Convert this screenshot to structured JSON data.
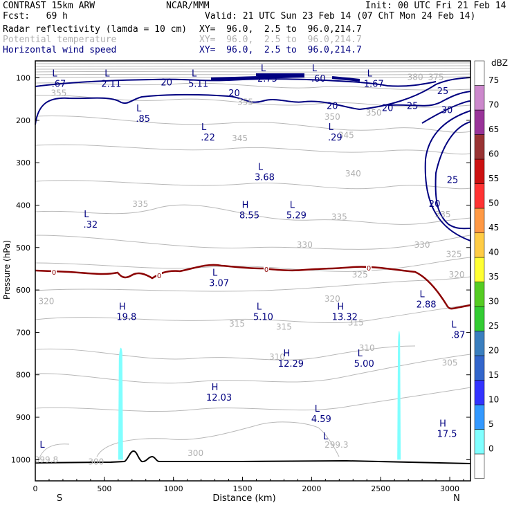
{
  "header": {
    "model": "CONTRAST 15km ARW",
    "org": "NCAR/MMM",
    "init": "Init: 00 UTC Fri 21 Feb 14",
    "fcst": "Fcst:   69 h",
    "valid": "Valid: 21 UTC Sun 23 Feb 14 (07 ChT Mon 24 Feb 14)",
    "fields": [
      {
        "name": "Radar reflectivity (lamda = 10 cm)",
        "xy": "XY=  96.0,  2.5 to  96.0,214.7",
        "color": "#000000"
      },
      {
        "name": "Potential temperature",
        "xy": "XY=  96.0,  2.5 to  96.0,214.7",
        "color": "#b0b0b0"
      },
      {
        "name": "Horizontal wind speed",
        "xy": "XY=  96.0,  2.5 to  96.0,214.7",
        "color": "#000080"
      }
    ]
  },
  "chart_data": {
    "type": "cross-section",
    "xlabel": "Distance (km)",
    "ylabel": "Pressure (hPa)",
    "xlim": [
      0,
      3150
    ],
    "ylim": [
      1050,
      60
    ],
    "x_ticks": [
      "0",
      "500",
      "1000",
      "1500",
      "2000",
      "2500",
      "3000"
    ],
    "y_ticks": [
      "100",
      "200",
      "300",
      "400",
      "500",
      "600",
      "700",
      "800",
      "900",
      "1000"
    ],
    "end_labels": {
      "left": "S",
      "right": "N"
    },
    "colorbar": {
      "unit": "dBZ",
      "levels": [
        "-",
        "0",
        "5",
        "10",
        "15",
        "20",
        "25",
        "30",
        "35",
        "40",
        "45",
        "50",
        "55",
        "60",
        "65",
        "70",
        "75"
      ],
      "colors": [
        "#ffffff",
        "#ffffff",
        "#80ffff",
        "#3399ff",
        "#3333ff",
        "#3366cc",
        "#3a7fbf",
        "#33cc33",
        "#55cc22",
        "#ffff33",
        "#ffcc44",
        "#ff9944",
        "#ff3333",
        "#cc1111",
        "#993333",
        "#993399",
        "#cc88cc",
        "#ffffff"
      ]
    },
    "theta_labels": [
      {
        "text": "380",
        "x": 2750,
        "p": 98
      },
      {
        "text": "375",
        "x": 2900,
        "p": 98
      },
      {
        "text": "355",
        "x": 170,
        "p": 136
      },
      {
        "text": "355",
        "x": 1520,
        "p": 157
      },
      {
        "text": "350",
        "x": 2150,
        "p": 192
      },
      {
        "text": "350",
        "x": 2450,
        "p": 182
      },
      {
        "text": "345",
        "x": 1480,
        "p": 243
      },
      {
        "text": "345",
        "x": 2250,
        "p": 235
      },
      {
        "text": "340",
        "x": 2300,
        "p": 326
      },
      {
        "text": "335",
        "x": 760,
        "p": 398
      },
      {
        "text": "335",
        "x": 2200,
        "p": 428
      },
      {
        "text": "335",
        "x": 2950,
        "p": 422
      },
      {
        "text": "330",
        "x": 1950,
        "p": 494
      },
      {
        "text": "330",
        "x": 2800,
        "p": 494
      },
      {
        "text": "325",
        "x": 3030,
        "p": 516
      },
      {
        "text": "325",
        "x": 2350,
        "p": 564
      },
      {
        "text": "320",
        "x": 3050,
        "p": 564
      },
      {
        "text": "320",
        "x": 80,
        "p": 627
      },
      {
        "text": "320",
        "x": 2150,
        "p": 621
      },
      {
        "text": "315",
        "x": 1460,
        "p": 680
      },
      {
        "text": "315",
        "x": 1800,
        "p": 687
      },
      {
        "text": "315",
        "x": 2320,
        "p": 677
      },
      {
        "text": "310",
        "x": 2400,
        "p": 737
      },
      {
        "text": "310",
        "x": 1750,
        "p": 758
      },
      {
        "text": "305",
        "x": 3000,
        "p": 772
      },
      {
        "text": "300",
        "x": 440,
        "p": 1005
      },
      {
        "text": "300",
        "x": 1160,
        "p": 985
      },
      {
        "text": "299.8",
        "x": 80,
        "p": 1000
      },
      {
        "text": "299.3",
        "x": 2180,
        "p": 965
      }
    ],
    "wind_labels": [
      {
        "text": "20",
        "x": 950,
        "p": 110
      },
      {
        "text": "20",
        "x": 1440,
        "p": 135
      },
      {
        "text": "20",
        "x": 2150,
        "p": 165
      },
      {
        "text": "20",
        "x": 2550,
        "p": 170
      },
      {
        "text": "25",
        "x": 2730,
        "p": 165
      },
      {
        "text": "25",
        "x": 2950,
        "p": 130
      },
      {
        "text": "30",
        "x": 2980,
        "p": 175
      },
      {
        "text": "25",
        "x": 3020,
        "p": 340
      },
      {
        "text": "20",
        "x": 2890,
        "p": 396
      }
    ],
    "extrema": [
      {
        "type": "L",
        "value": ".67",
        "x": 170,
        "p": 100
      },
      {
        "type": "L",
        "value": "2.11",
        "x": 550,
        "p": 100
      },
      {
        "type": "L",
        "value": "5.11",
        "x": 1180,
        "p": 100
      },
      {
        "type": "L",
        "value": "2.75",
        "x": 1680,
        "p": 88
      },
      {
        "type": "L",
        "value": ".60",
        "x": 2050,
        "p": 88
      },
      {
        "type": "L",
        "value": "1.67",
        "x": 2450,
        "p": 100
      },
      {
        "type": "L",
        "value": ".85",
        "x": 780,
        "p": 182
      },
      {
        "type": "L",
        "value": ".22",
        "x": 1250,
        "p": 226
      },
      {
        "type": "L",
        "value": ".29",
        "x": 2170,
        "p": 226
      },
      {
        "type": "L",
        "value": "3.68",
        "x": 1660,
        "p": 320
      },
      {
        "type": "H",
        "value": "8.55",
        "x": 1550,
        "p": 410
      },
      {
        "type": "L",
        "value": "5.29",
        "x": 1890,
        "p": 410
      },
      {
        "type": "L",
        "value": ".32",
        "x": 400,
        "p": 432
      },
      {
        "type": "L",
        "value": "3.07",
        "x": 1330,
        "p": 570
      },
      {
        "type": "L",
        "value": "2.88",
        "x": 2830,
        "p": 620
      },
      {
        "type": "H",
        "value": "19.8",
        "x": 660,
        "p": 650
      },
      {
        "type": "L",
        "value": "5.10",
        "x": 1650,
        "p": 650
      },
      {
        "type": "H",
        "value": "13.32",
        "x": 2240,
        "p": 650
      },
      {
        "type": "L",
        "value": ".87",
        "x": 3060,
        "p": 692
      },
      {
        "type": "H",
        "value": "12.29",
        "x": 1850,
        "p": 760
      },
      {
        "type": "L",
        "value": "5.00",
        "x": 2380,
        "p": 760
      },
      {
        "type": "H",
        "value": "12.03",
        "x": 1330,
        "p": 840
      },
      {
        "type": "L",
        "value": "4.59",
        "x": 2070,
        "p": 890
      },
      {
        "type": "H",
        "value": "17.5",
        "x": 2980,
        "p": 925
      },
      {
        "type": "L",
        "value": "",
        "x": 80,
        "p": 975
      },
      {
        "type": "L",
        "value": "",
        "x": 2130,
        "p": 955
      }
    ],
    "zero_contour_labels": [
      "0",
      "0",
      "0",
      "0"
    ],
    "reflectivity_columns": [
      {
        "x_start": 600,
        "x_end": 630,
        "p_top": 730,
        "p_bottom": 1000
      },
      {
        "x_start": 2620,
        "x_end": 2640,
        "p_top": 690,
        "p_bottom": 1000
      }
    ]
  }
}
